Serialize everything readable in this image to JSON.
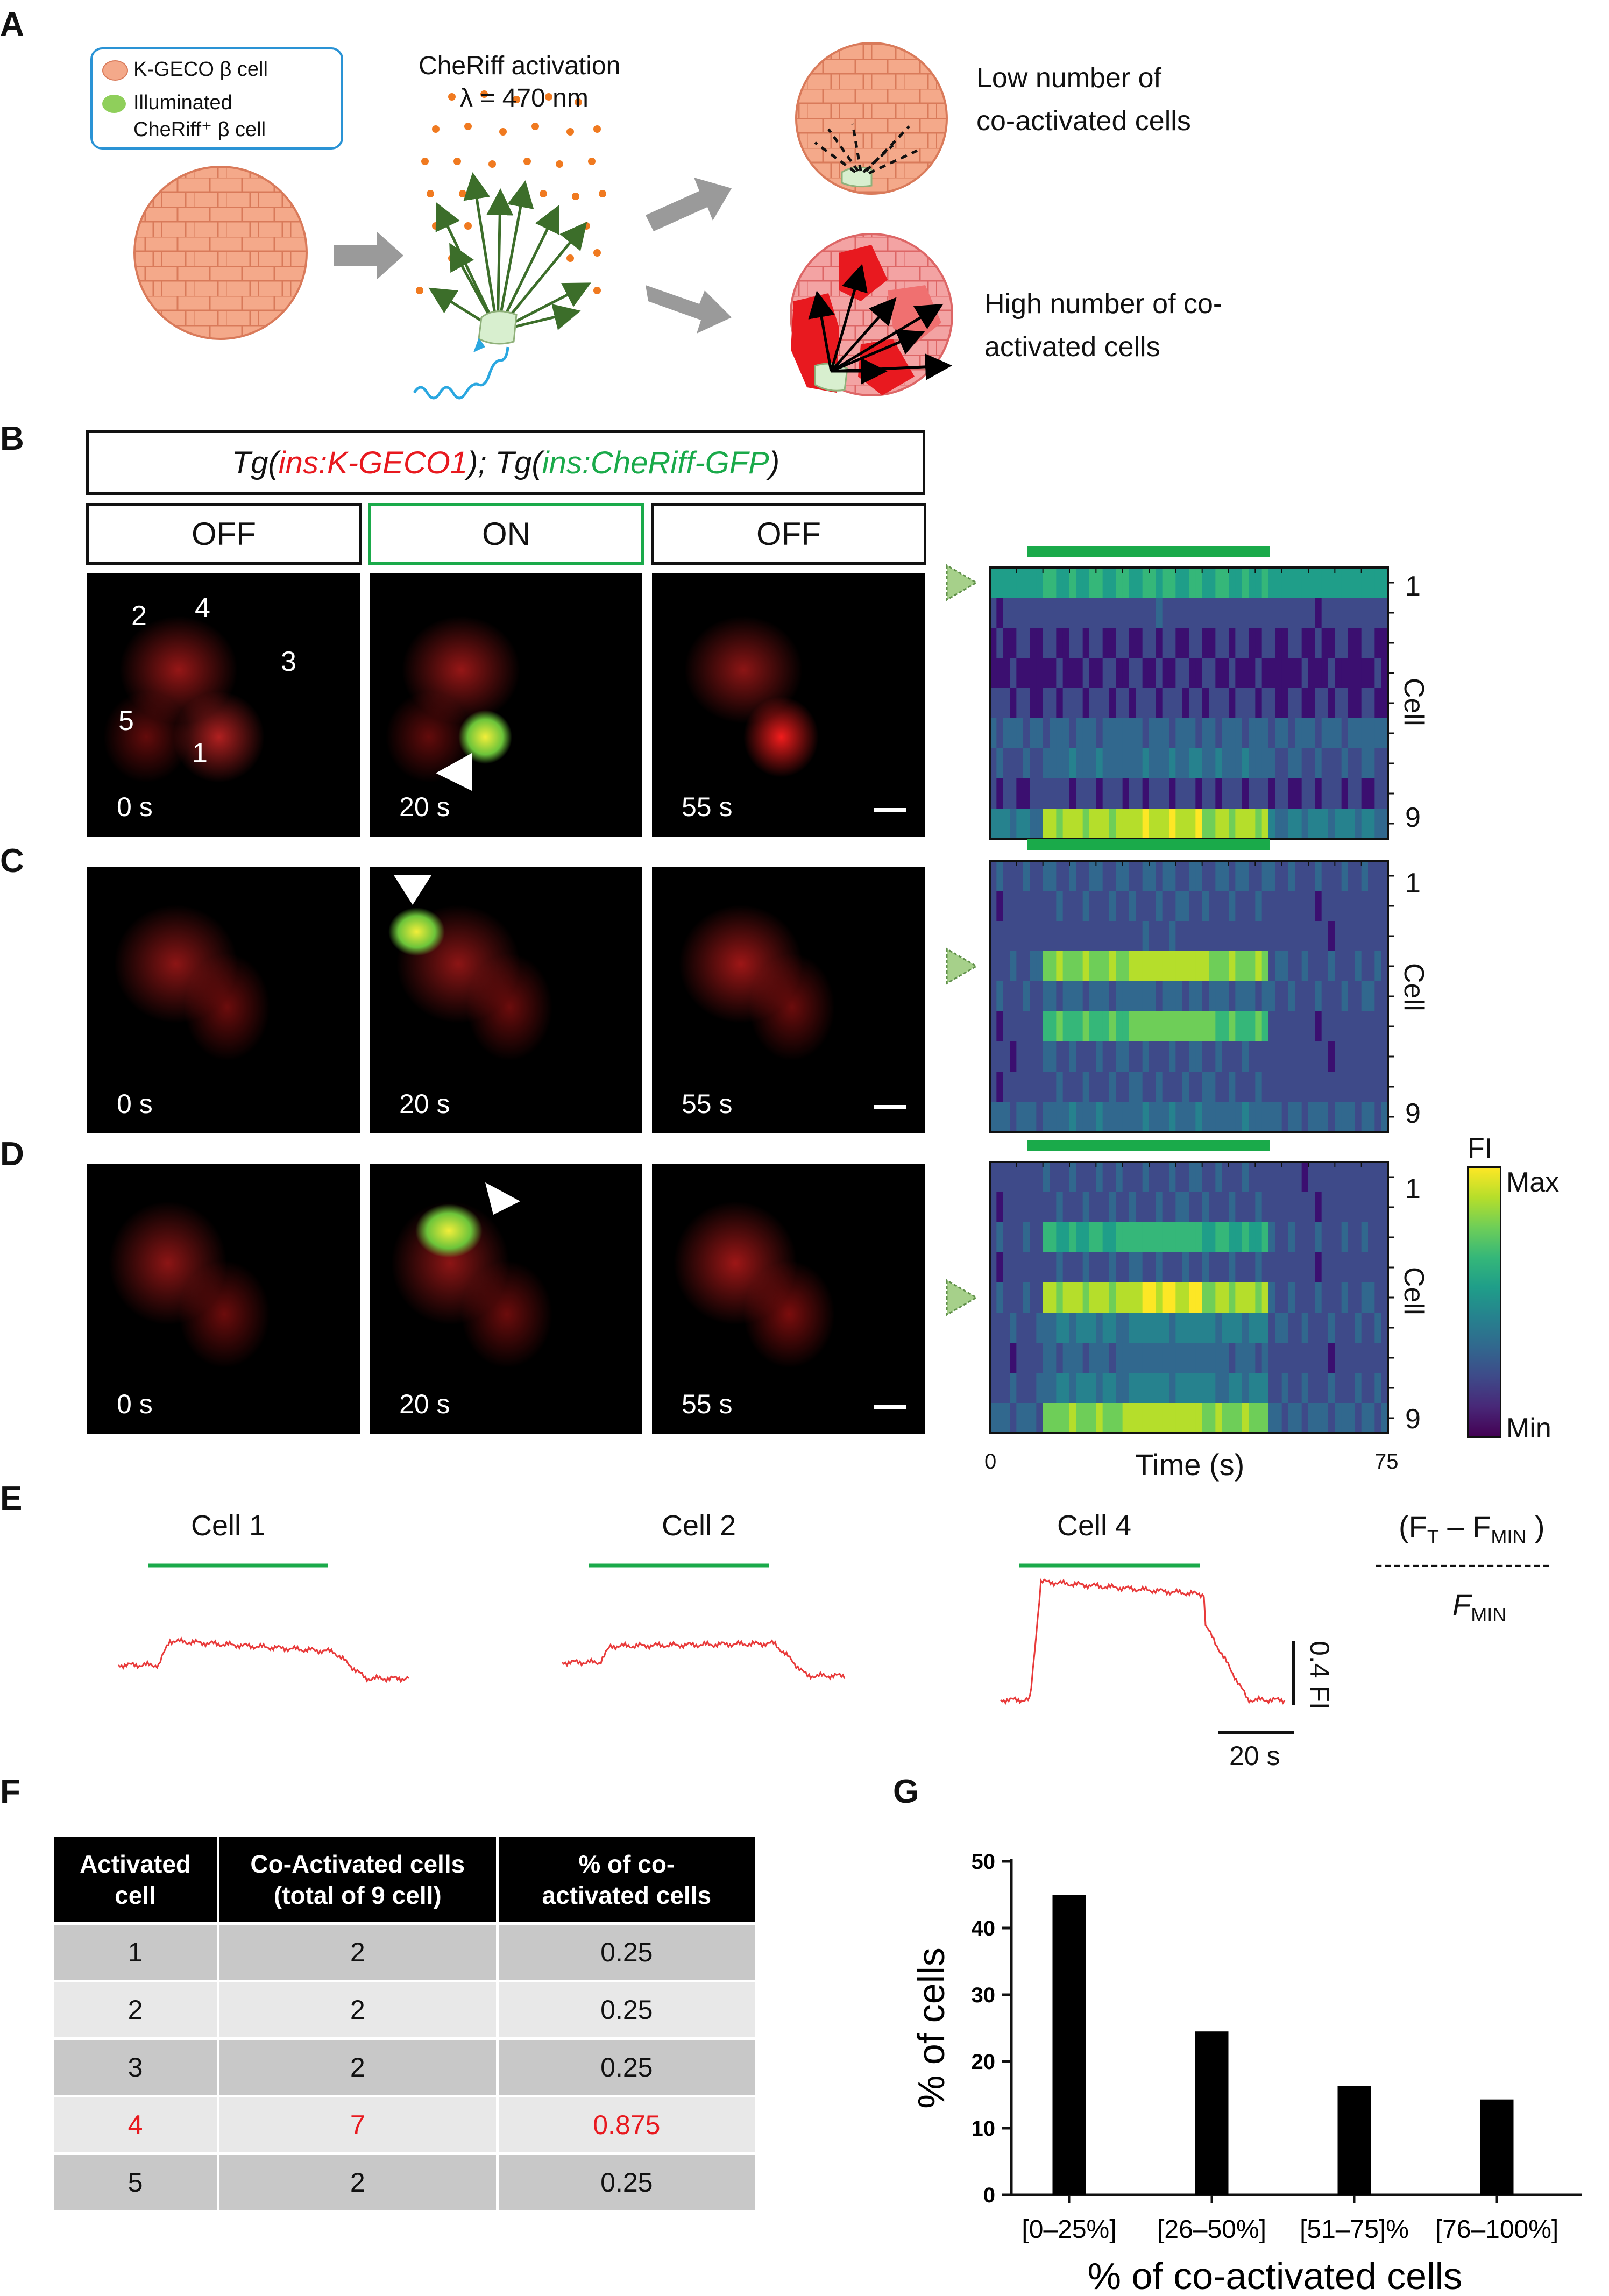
{
  "panel_labels": [
    "A",
    "B",
    "C",
    "D",
    "E",
    "F",
    "G"
  ],
  "panelA": {
    "legend": {
      "item1": "K-GECO β cell",
      "item2_line1": "Illuminated",
      "item2_line2": "CheRiff⁺ β cell"
    },
    "activation_line1": "CheRiff activation",
    "activation_line2": "λ = 470 nm",
    "low_line1": "Low number of",
    "low_line2": "co-activated cells",
    "high_line1": "High number of co-",
    "high_line2": "activated cells",
    "colors": {
      "cell": "#f4a98a",
      "cell_edge": "#d97a5a",
      "illuminated": "#d8efcf",
      "arrow_gray": "#9a9a9a",
      "dot_orange": "#f07a20",
      "vector_green": "#3c6e2a",
      "wave_blue": "#2aa7e0",
      "high_red": "#e8191f"
    }
  },
  "panelB": {
    "genotype_a": "Tg(",
    "genotype_b": "ins:K-GECO1",
    "genotype_c": "); Tg(",
    "genotype_d": "ins:CheRiff-GFP",
    "genotype_e": ")",
    "states": [
      "OFF",
      "ON",
      "OFF"
    ],
    "times": [
      "0 s",
      "20 s",
      "55 s"
    ],
    "cell_numbers": [
      "2",
      "4",
      "3",
      "5",
      "1"
    ]
  },
  "heatmap": {
    "row_label_top": "1",
    "row_label_bottom": "9",
    "axis_label": "Cell",
    "x_start": "0",
    "x_end": "75",
    "x_title": "Time (s)",
    "colorbar_title": "FI",
    "colorbar_max": "Max",
    "colorbar_min": "Min",
    "stim_color": "#1aaa4a",
    "colormap": [
      "#3b0f70",
      "#3e4a89",
      "#31688e",
      "#26828e",
      "#1f9e89",
      "#35b779",
      "#6ece58",
      "#b5de2b",
      "#fde725"
    ]
  },
  "panelE": {
    "traces": [
      "Cell 1",
      "Cell 2",
      "Cell 4"
    ],
    "formula_num_a": "(F",
    "formula_num_sub1": "T",
    "formula_num_b": " – F",
    "formula_num_sub2": "MIN",
    "formula_num_c": " )",
    "formula_line": "-------------------",
    "formula_den": "F",
    "formula_den_sub": "MIN",
    "scale_y": "0.4 FI",
    "scale_x": "20 s",
    "trace_color": "#e83a3a"
  },
  "panelF": {
    "headers": [
      "Activated cell",
      "Co-Activated cells (total of 9 cell)",
      "% of co-activated cells"
    ],
    "header_lines": [
      [
        "Activated",
        "cell"
      ],
      [
        "Co-Activated cells",
        "(total of 9 cell)"
      ],
      [
        "% of co-",
        "activated cells"
      ]
    ],
    "rows": [
      [
        "1",
        "2",
        "0.25"
      ],
      [
        "2",
        "2",
        "0.25"
      ],
      [
        "3",
        "2",
        "0.25"
      ],
      [
        "4",
        "7",
        "0.875"
      ],
      [
        "5",
        "2",
        "0.25"
      ]
    ]
  },
  "chart_data": {
    "type": "bar",
    "categories": [
      "[0–25%]",
      "[26–50%]",
      "[51–75]%",
      "[76–100%]"
    ],
    "values": [
      45,
      24.5,
      16.3,
      14.3
    ],
    "xlabel": "% of co-activated cells",
    "ylabel": "% of cells",
    "ylim": [
      0,
      50
    ],
    "yticks": [
      "0",
      "10",
      "20",
      "30",
      "40",
      "50"
    ],
    "bar_color": "#000000"
  }
}
